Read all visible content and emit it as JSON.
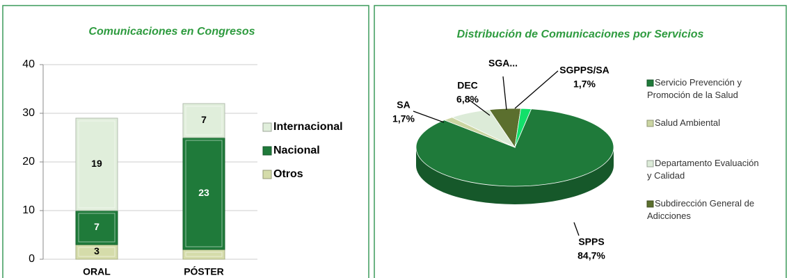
{
  "chart_data": [
    {
      "type": "bar",
      "stacked": true,
      "title": "Comunicaciones en Congresos",
      "categories": [
        "ORAL",
        "PÓSTER"
      ],
      "series": [
        {
          "name": "Otros",
          "color": "#d5dcaa",
          "values": [
            3,
            2
          ],
          "value_labels": [
            "3",
            null
          ]
        },
        {
          "name": "Nacional",
          "color": "#1f7a3a",
          "values": [
            7,
            23
          ]
        },
        {
          "name": "Internacional",
          "color": "#e0eedb",
          "values": [
            19,
            7
          ]
        }
      ],
      "ylim": [
        0,
        40
      ],
      "yticks": [
        0,
        10,
        20,
        30,
        40
      ],
      "grid": true,
      "legend": "right"
    },
    {
      "type": "pie",
      "title": "Distribución de Comunicaciones por Servicios",
      "categories": [
        "Servicio Prevención y Promoción de la Salud",
        "Salud Ambiental",
        "Departamento Evaluación y Calidad",
        "Subdirección General de Adicciones",
        null
      ],
      "short_labels": [
        "SPPS",
        "SA",
        "DEC",
        "SGA...",
        "SGPPS/SA"
      ],
      "values": [
        84.7,
        1.7,
        6.8,
        5.1,
        1.7
      ],
      "value_labels": [
        "84,7%",
        "1,7%",
        "6,8%",
        null,
        "1,7%"
      ],
      "colors": [
        "#1f7a3a",
        "#cbd5a2",
        "#dcebd8",
        "#5b6f2e",
        "#12e06a"
      ],
      "legend": "right"
    }
  ]
}
